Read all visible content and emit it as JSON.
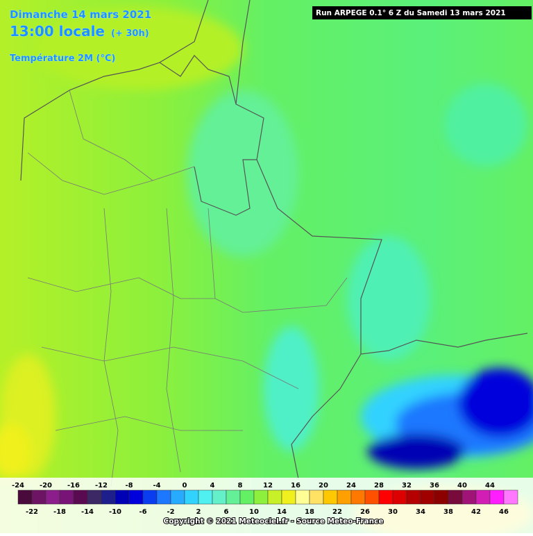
{
  "header": {
    "date": "Dimanche 14 mars 2021",
    "time": "13:00 locale",
    "offset": "(+ 30h)",
    "parameter": "Température 2M (°C)",
    "run": "Run ARPEGE 0.1° 6 Z du Samedi 13 mars 2021"
  },
  "colorbar": {
    "labels": [
      -24,
      -22,
      -20,
      -18,
      -16,
      -14,
      -12,
      -10,
      -8,
      -6,
      -4,
      -2,
      0,
      2,
      4,
      6,
      8,
      10,
      12,
      14,
      16,
      18,
      20,
      22,
      24,
      26,
      28,
      30,
      32,
      34,
      36,
      38,
      40,
      42,
      44,
      46
    ],
    "colors": [
      "#4b0a3c",
      "#6e1464",
      "#8c1e8c",
      "#781478",
      "#5a0a50",
      "#3c2864",
      "#1e1e8c",
      "#0000b4",
      "#0000dc",
      "#0a3cf0",
      "#1e78ff",
      "#28aaff",
      "#32d2ff",
      "#50f0f0",
      "#64f0c8",
      "#64f096",
      "#64f064",
      "#8cf03c",
      "#c8f028",
      "#f0f01e",
      "#ffff96",
      "#ffe164",
      "#ffc800",
      "#ffa000",
      "#ff7800",
      "#ff5000",
      "#ff0000",
      "#dc0000",
      "#b40000",
      "#a00000",
      "#8c0000",
      "#780a3c",
      "#a01478",
      "#d21eb4",
      "#ff1eff",
      "#ff78ff"
    ]
  },
  "footer": {
    "copyright": "Copyright © 2021 Meteociel.fr - Source Meteo-France"
  }
}
